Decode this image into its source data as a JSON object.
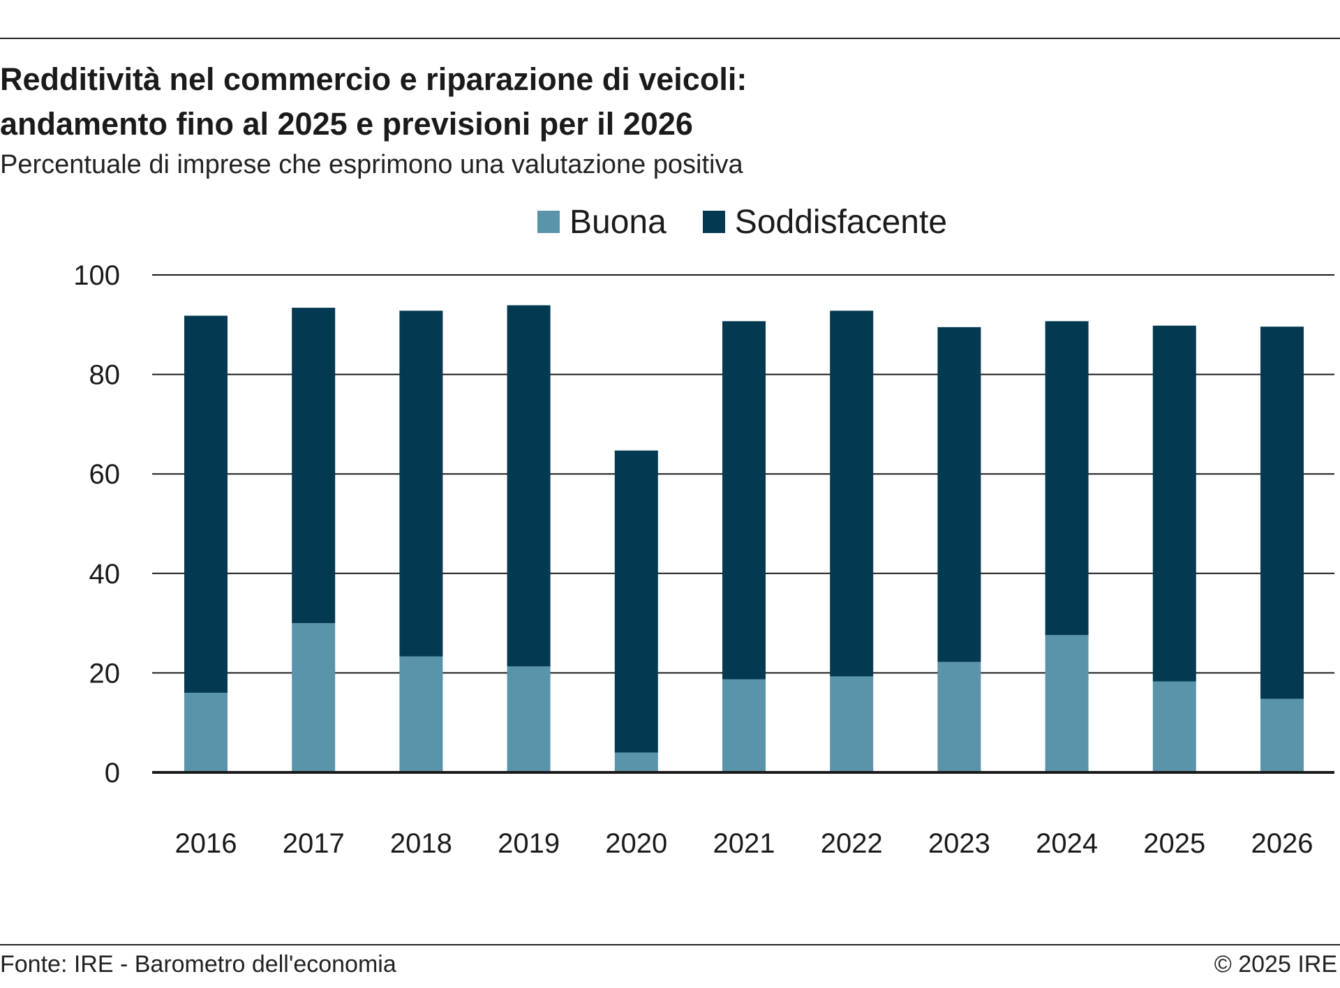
{
  "header": {
    "title_line1": "Redditività nel commercio e riparazione di veicoli:",
    "title_line2": "andamento fino al 2025 e previsioni per il 2026",
    "subtitle": "Percentuale di imprese che esprimono una valutazione positiva"
  },
  "legend": [
    {
      "label": "Buona",
      "color": "#5a94ab"
    },
    {
      "label": "Soddisfacente",
      "color": "#033a51"
    }
  ],
  "chart_data": {
    "type": "bar",
    "stacked": true,
    "categories": [
      "2016",
      "2017",
      "2018",
      "2019",
      "2020",
      "2021",
      "2022",
      "2023",
      "2024",
      "2025",
      "2026"
    ],
    "series": [
      {
        "name": "Buona",
        "color": "#5a94ab",
        "values": [
          16,
          30,
          23.3,
          21.3,
          4,
          18.7,
          19.3,
          22.2,
          27.6,
          18.3,
          14.8
        ]
      },
      {
        "name": "Soddisfacente",
        "color": "#033a51",
        "values": [
          75.8,
          63.4,
          69.5,
          72.6,
          60.7,
          72,
          73.5,
          67.3,
          63.1,
          71.5,
          74.8
        ]
      }
    ],
    "ylim": [
      0,
      100
    ],
    "yticks": [
      "0",
      "20",
      "40",
      "60",
      "80",
      "100"
    ],
    "grid": true,
    "legend_position": "top"
  },
  "footer": {
    "source": "Fonte: IRE - Barometro dell'economia",
    "copyright": "© 2025 IRE"
  }
}
